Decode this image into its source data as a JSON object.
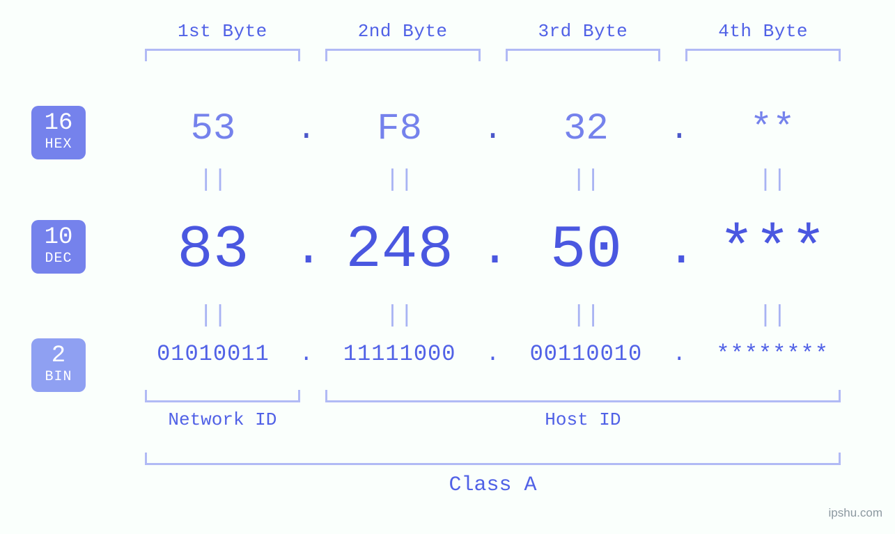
{
  "colors": {
    "background": "#fafffc",
    "primary_text": "#5061e6",
    "light_text": "#7582ec",
    "pale": "#a8b3f3",
    "bracket": "#b1baf5",
    "badge_main": "#7582ec",
    "badge_light": "#8fa0f2",
    "watermark": "#8c98a0"
  },
  "typography": {
    "font_family": "monospace",
    "byte_label_fontsize": 26,
    "hex_fontsize": 54,
    "dec_fontsize": 86,
    "bin_fontsize": 32,
    "eq_fontsize": 34,
    "id_label_fontsize": 26,
    "class_label_fontsize": 30,
    "badge_num_fontsize": 34,
    "badge_name_fontsize": 20
  },
  "byte_headers": [
    "1st Byte",
    "2nd Byte",
    "3rd Byte",
    "4th Byte"
  ],
  "badges": {
    "hex": {
      "base": "16",
      "name": "HEX"
    },
    "dec": {
      "base": "10",
      "name": "DEC"
    },
    "bin": {
      "base": "2",
      "name": "BIN"
    }
  },
  "separator": ".",
  "equals": "||",
  "hex_values": [
    "53",
    "F8",
    "32",
    "**"
  ],
  "dec_values": [
    "83",
    "248",
    "50",
    "***"
  ],
  "bin_values": [
    "01010011",
    "11111000",
    "00110010",
    "********"
  ],
  "id_labels": {
    "network": "Network ID",
    "host": "Host ID"
  },
  "class_label": "Class A",
  "watermark": "ipshu.com"
}
